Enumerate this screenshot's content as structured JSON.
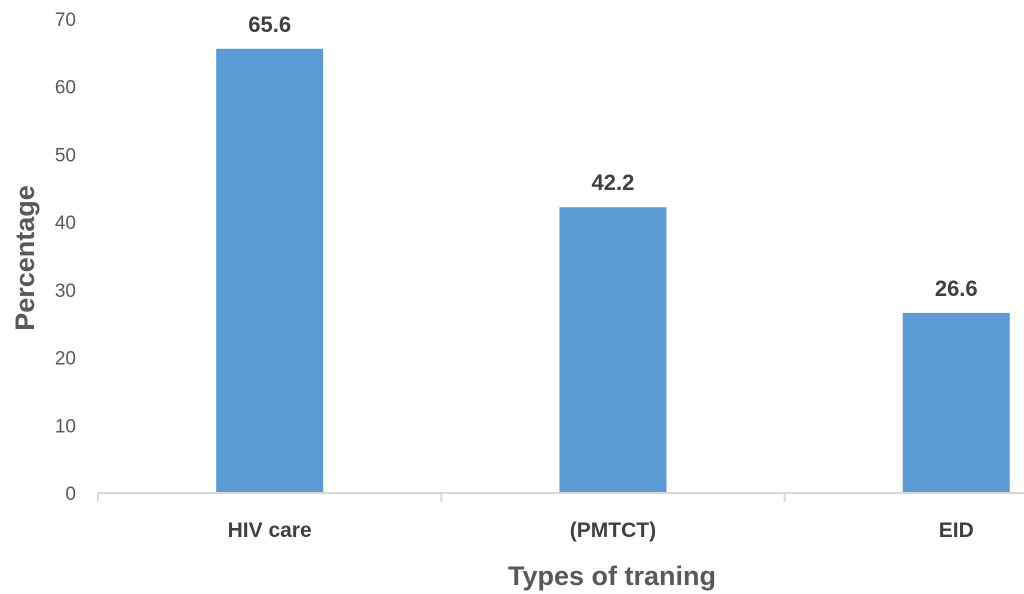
{
  "chart_data": {
    "type": "bar",
    "categories": [
      "HIV care",
      "(PMTCT)",
      "EID"
    ],
    "values": [
      65.6,
      42.2,
      26.6
    ],
    "data_labels": [
      "65.6",
      "42.2",
      "26.6"
    ],
    "title": "",
    "xlabel": "Types of traning",
    "ylabel": "Percentage",
    "ylim": [
      0,
      70
    ],
    "yticks": [
      "0",
      "10",
      "20",
      "30",
      "40",
      "50",
      "60",
      "70"
    ],
    "grid": false,
    "legend": "none",
    "bar_color": "#5B9BD5"
  }
}
